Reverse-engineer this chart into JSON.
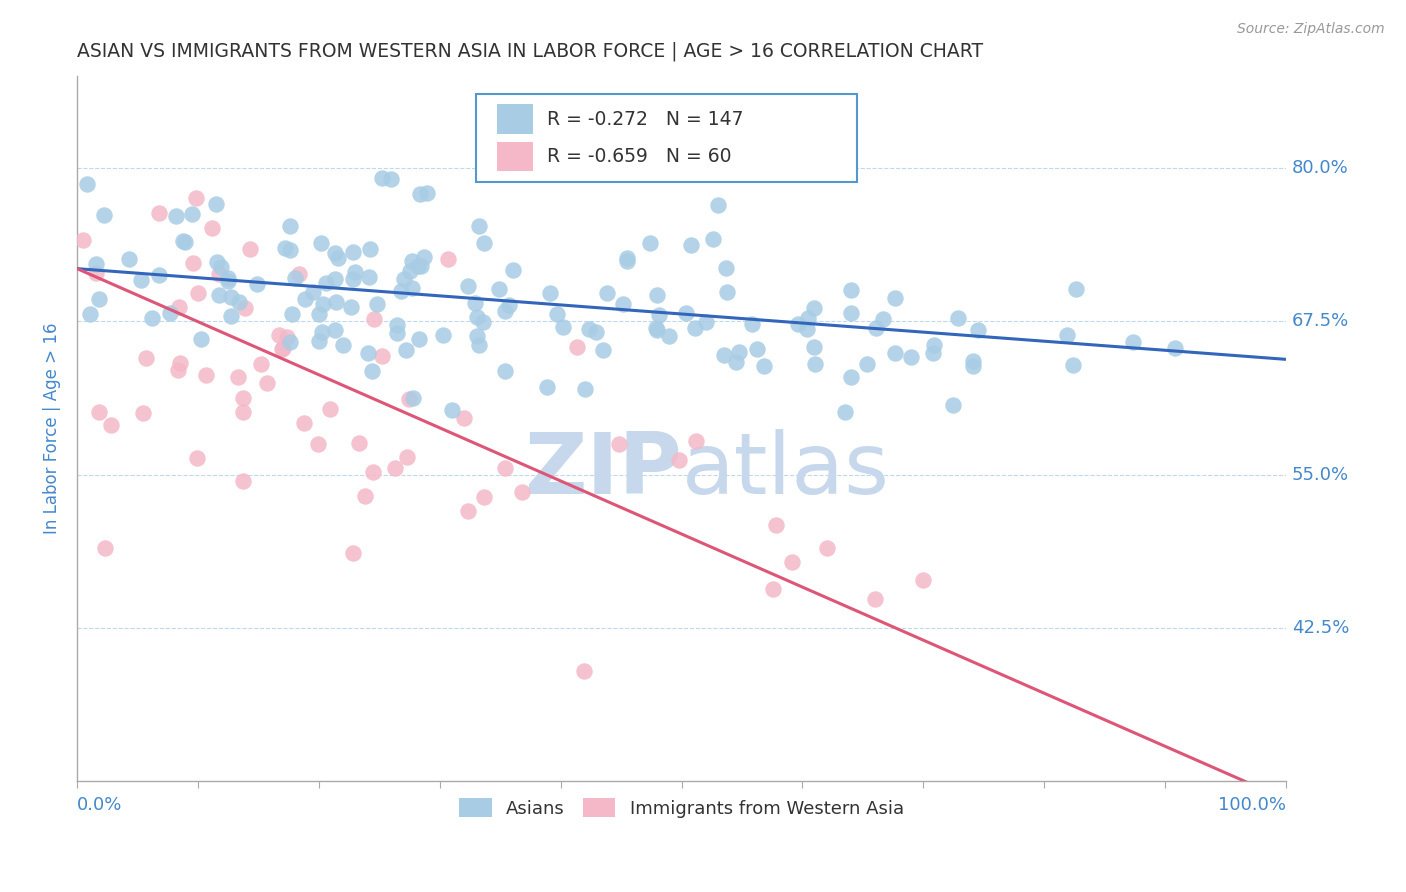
{
  "title": "ASIAN VS IMMIGRANTS FROM WESTERN ASIA IN LABOR FORCE | AGE > 16 CORRELATION CHART",
  "source": "Source: ZipAtlas.com",
  "ylabel": "In Labor Force | Age > 16",
  "x_min": 0.0,
  "x_max": 1.0,
  "y_min": 0.3,
  "y_max": 0.875,
  "y_ticks": [
    0.425,
    0.55,
    0.675,
    0.8
  ],
  "y_tick_labels": [
    "42.5%",
    "55.0%",
    "67.5%",
    "80.0%"
  ],
  "blue_R": -0.272,
  "blue_N": 147,
  "pink_R": -0.659,
  "pink_N": 60,
  "blue_color": "#a8cce4",
  "pink_color": "#f4b8c8",
  "blue_line_color": "#3366bb",
  "pink_line_color": "#dd5577",
  "title_color": "#333333",
  "axis_label_color": "#4488cc",
  "tick_color": "#4488cc",
  "grid_color": "#c0d8ee",
  "background_color": "#ffffff",
  "watermark_color": "#c8d8ec",
  "legend_label_blue": "Asians",
  "legend_label_pink": "Immigrants from Western Asia",
  "blue_line_start_x": 0.0,
  "blue_line_start_y": 0.718,
  "blue_line_end_x": 1.0,
  "blue_line_end_y": 0.644,
  "pink_line_start_x": 0.0,
  "pink_line_start_y": 0.718,
  "pink_line_end_x": 1.0,
  "pink_line_end_y": 0.285
}
